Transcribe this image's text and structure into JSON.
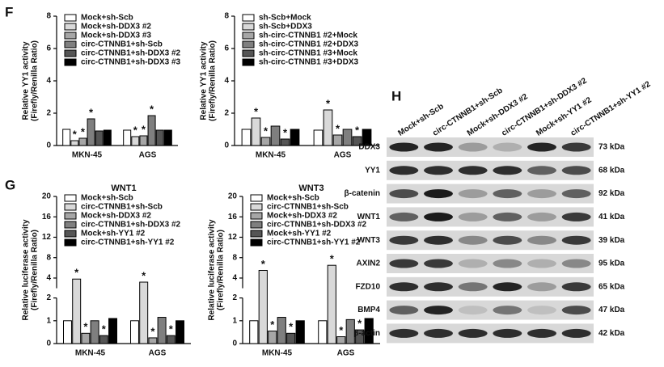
{
  "panel_labels": [
    "F",
    "G",
    "H"
  ],
  "chart_data": [
    {
      "type": "bar",
      "y_label": [
        "Relative YY1 activity",
        "(Firefly/Renilla Ratio)"
      ],
      "categories": [
        "MKN-45",
        "AGS"
      ],
      "ylim": [
        0,
        8
      ],
      "yticks": [
        0,
        2,
        4,
        6,
        8
      ],
      "legend": "upper left",
      "series": [
        {
          "name": "Mock+sh-Scb",
          "color": "#ffffff",
          "values": [
            1.0,
            0.95
          ],
          "significance": [
            null,
            null
          ]
        },
        {
          "name": "Mock+sh-DDX3 #2",
          "color": "#d9d9d9",
          "values": [
            0.3,
            0.55
          ],
          "significance": [
            "*",
            "*"
          ]
        },
        {
          "name": "Mock+sh-DDX3 #3",
          "color": "#a6a6a6",
          "values": [
            0.45,
            0.6
          ],
          "significance": [
            "*",
            "*"
          ]
        },
        {
          "name": "circ-CTNNB1+sh-Scb",
          "color": "#7f7f7f",
          "values": [
            1.65,
            1.85
          ],
          "significance": [
            "*",
            "*"
          ]
        },
        {
          "name": "circ-CTNNB1+sh-DDX3 #2",
          "color": "#555555",
          "values": [
            0.9,
            0.95
          ],
          "significance": [
            null,
            null
          ]
        },
        {
          "name": "circ-CTNNB1+sh-DDX3 #3",
          "color": "#000000",
          "values": [
            0.95,
            0.95
          ],
          "significance": [
            null,
            null
          ]
        }
      ]
    },
    {
      "type": "bar",
      "y_label": [
        "Relative YY1 activity",
        "(Firefly/Renilla Ratio)"
      ],
      "categories": [
        "MKN-45",
        "AGS"
      ],
      "ylim": [
        0,
        8
      ],
      "yticks": [
        0,
        2,
        4,
        6,
        8
      ],
      "legend": "upper left",
      "series": [
        {
          "name": "sh-Scb+Mock",
          "color": "#ffffff",
          "values": [
            1.0,
            0.95
          ],
          "significance": [
            null,
            null
          ]
        },
        {
          "name": "sh-Scb+DDX3",
          "color": "#d9d9d9",
          "values": [
            1.7,
            2.2
          ],
          "significance": [
            "*",
            "*"
          ]
        },
        {
          "name": "sh-circ-CTNNB1 #2+Mock",
          "color": "#a6a6a6",
          "values": [
            0.5,
            0.65
          ],
          "significance": [
            "*",
            "*"
          ]
        },
        {
          "name": "sh-circ-CTNNB1 #2+DDX3",
          "color": "#7f7f7f",
          "values": [
            1.2,
            1.0
          ],
          "significance": [
            null,
            null
          ]
        },
        {
          "name": "sh-circ-CTNNB1 #3+Mock",
          "color": "#555555",
          "values": [
            0.4,
            0.55
          ],
          "significance": [
            "*",
            "*"
          ]
        },
        {
          "name": "sh-circ-CTNNB1 #3+DDX3",
          "color": "#000000",
          "values": [
            1.0,
            1.0
          ],
          "significance": [
            null,
            null
          ]
        }
      ]
    },
    {
      "type": "bar",
      "title": "WNT1",
      "y_label": [
        "Relative luciferase activity",
        "(Firefly/Renilla Ratio)"
      ],
      "categories": [
        "MKN-45",
        "AGS"
      ],
      "ylim": [
        0,
        20
      ],
      "ybreak": 2,
      "yticks": [
        0,
        1,
        2,
        4,
        8,
        12,
        16,
        20
      ],
      "legend": "upper left",
      "series": [
        {
          "name": "Mock+sh-Scb",
          "color": "#ffffff",
          "values": [
            1.0,
            1.0
          ],
          "significance": [
            null,
            null
          ]
        },
        {
          "name": "circ-CTNNB1+sh-Scb",
          "color": "#d9d9d9",
          "values": [
            3.8,
            3.2
          ],
          "significance": [
            "*",
            "*"
          ]
        },
        {
          "name": "Mock+sh-DDX3 #2",
          "color": "#a6a6a6",
          "values": [
            0.45,
            0.25
          ],
          "significance": [
            "*",
            "*"
          ]
        },
        {
          "name": "circ-CTNNB1+sh-DDX3 #2",
          "color": "#7f7f7f",
          "values": [
            1.0,
            1.15
          ],
          "significance": [
            null,
            null
          ]
        },
        {
          "name": "Mock+sh-YY1 #2",
          "color": "#555555",
          "values": [
            0.35,
            0.35
          ],
          "significance": [
            "*",
            "*"
          ]
        },
        {
          "name": "circ-CTNNB1+sh-YY1 #2",
          "color": "#000000",
          "values": [
            1.1,
            1.0
          ],
          "significance": [
            null,
            null
          ]
        }
      ]
    },
    {
      "type": "bar",
      "title": "WNT3",
      "y_label": [
        "Relative luciferase activity",
        "(Firefly/Renilla Ratio)"
      ],
      "categories": [
        "MKN-45",
        "AGS"
      ],
      "ylim": [
        0,
        20
      ],
      "ybreak": 2,
      "yticks": [
        0,
        1,
        2,
        4,
        8,
        12,
        16,
        20
      ],
      "legend": "upper left",
      "series": [
        {
          "name": "Mock+sh-Scb",
          "color": "#ffffff",
          "values": [
            1.0,
            1.0
          ],
          "significance": [
            null,
            null
          ]
        },
        {
          "name": "circ-CTNNB1+sh-Scb",
          "color": "#d9d9d9",
          "values": [
            5.5,
            6.5
          ],
          "significance": [
            "*",
            "*"
          ]
        },
        {
          "name": "Mock+sh-DDX3 #2",
          "color": "#a6a6a6",
          "values": [
            0.55,
            0.3
          ],
          "significance": [
            "*",
            "*"
          ]
        },
        {
          "name": "circ-CTNNB1+sh-DDX3 #2",
          "color": "#7f7f7f",
          "values": [
            1.15,
            1.05
          ],
          "significance": [
            null,
            null
          ]
        },
        {
          "name": "Mock+sh-YY1 #2",
          "color": "#555555",
          "values": [
            0.45,
            0.6
          ],
          "significance": [
            "*",
            "*"
          ]
        },
        {
          "name": "circ-CTNNB1+sh-YY1 #2",
          "color": "#000000",
          "values": [
            1.0,
            1.1
          ],
          "significance": [
            null,
            null
          ]
        }
      ]
    }
  ],
  "blot": {
    "lanes": [
      "Mock+sh-Scb",
      "circ-CTNNB1+sh-Scb",
      "Mock+sh-DDX3 #2",
      "circ-CTNNB1+sh-DDX3 #2",
      "Mock+sh-YY1 #2",
      "circ-CTNNB1+sh-YY1 #2"
    ],
    "rows": [
      {
        "protein": "DDX3",
        "size": "73 kDa"
      },
      {
        "protein": "YY1",
        "size": "68 kDa"
      },
      {
        "protein": "β-catenin",
        "size": "92 kDa"
      },
      {
        "protein": "WNT1",
        "size": "41 kDa"
      },
      {
        "protein": "WNT3",
        "size": "39 kDa"
      },
      {
        "protein": "AXIN2",
        "size": "95 kDa"
      },
      {
        "protein": "FZD10",
        "size": "65 kDa"
      },
      {
        "protein": "BMP4",
        "size": "47 kDa"
      },
      {
        "protein": "β-actin",
        "size": "42 kDa"
      }
    ]
  }
}
